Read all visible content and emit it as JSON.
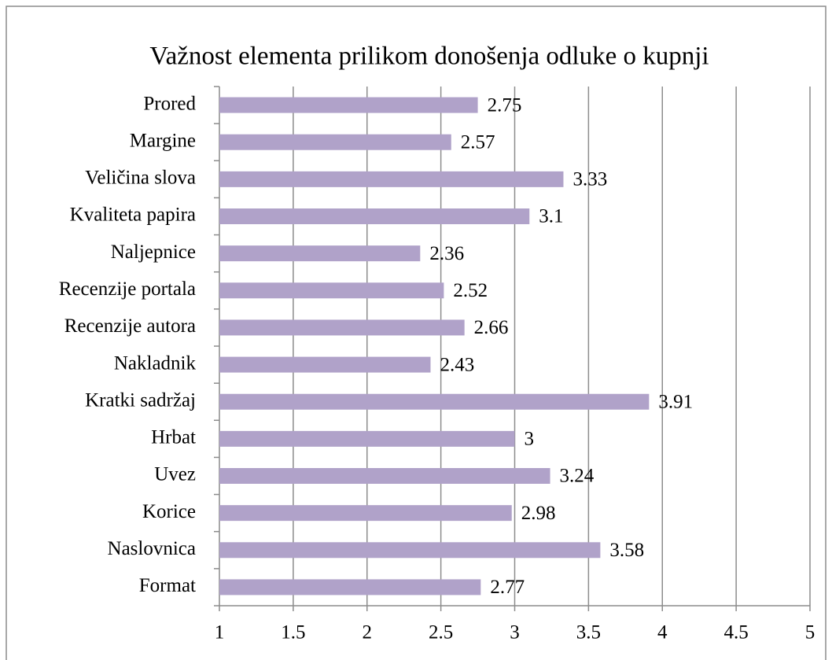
{
  "chart_data": {
    "type": "bar",
    "orientation": "horizontal",
    "title": "Važnost elementa prilikom donošenja odluke o kupnji",
    "categories": [
      "Prored",
      "Margine",
      "Veličina slova",
      "Kvaliteta papira",
      "Naljepnice",
      "Recenzije portala",
      "Recenzije autora",
      "Nakladnik",
      "Kratki sadržaj",
      "Hrbat",
      "Uvez",
      "Korice",
      "Naslovnica",
      "Format"
    ],
    "values": [
      2.75,
      2.57,
      3.33,
      3.1,
      2.36,
      2.52,
      2.66,
      2.43,
      3.91,
      3,
      3.24,
      2.98,
      3.58,
      2.77
    ],
    "color": "#b0a2c9",
    "xlim": [
      1,
      5
    ],
    "xticks": [
      1,
      1.5,
      2,
      2.5,
      3,
      3.5,
      4,
      4.5,
      5
    ],
    "grid": true
  }
}
